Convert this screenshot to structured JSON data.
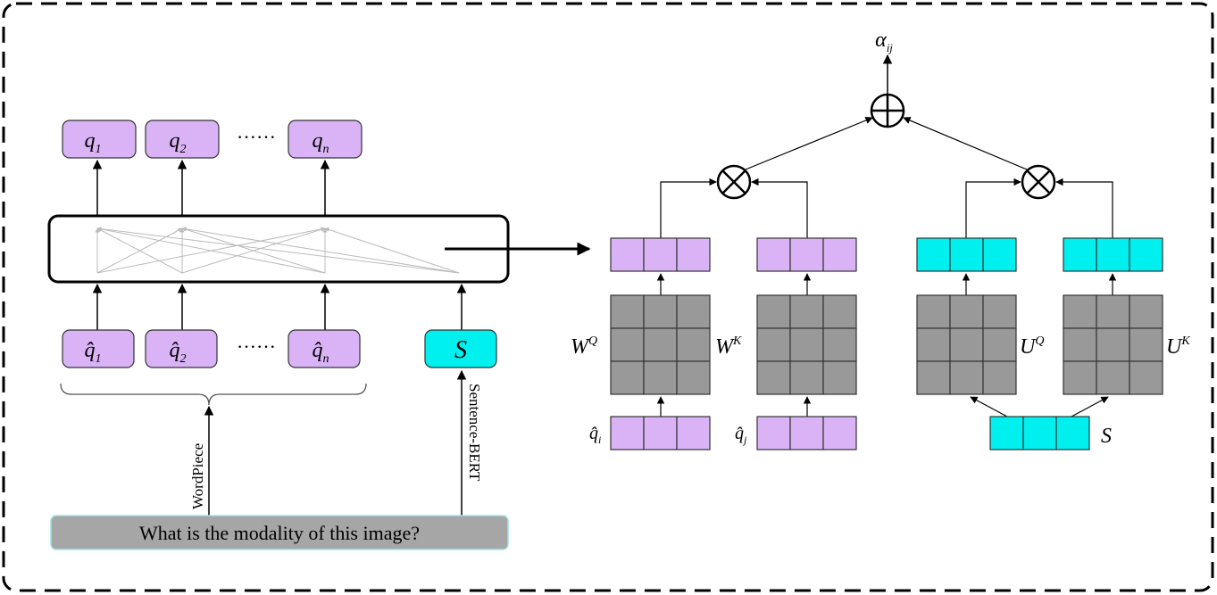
{
  "tokens": {
    "q_outputs": [
      {
        "base": "q",
        "sub": "1"
      },
      {
        "base": "q",
        "sub": "2"
      },
      {
        "base": "q",
        "sub": "n"
      }
    ],
    "q_inputs": [
      {
        "base": "q̂",
        "sub": "1"
      },
      {
        "base": "q̂",
        "sub": "2"
      },
      {
        "base": "q̂",
        "sub": "n"
      }
    ],
    "ellipsis": "······",
    "s_label": "S"
  },
  "labels": {
    "wordpiece": "WordPiece",
    "sentence_bert": "Sentence-BERT",
    "question": "What is the modality of this image?"
  },
  "attention": {
    "alpha": {
      "base": "α",
      "sub": "ij"
    },
    "plus_symbol": "⊕",
    "times_symbol": "⊗",
    "wq": {
      "base": "W",
      "sup": "Q"
    },
    "wk": {
      "base": "W",
      "sup": "K"
    },
    "uq": {
      "base": "U",
      "sup": "Q"
    },
    "uk": {
      "base": "U",
      "sup": "K"
    },
    "qi": {
      "base": "q̂",
      "sub": "i"
    },
    "qj": {
      "base": "q̂",
      "sub": "j"
    },
    "s": "S"
  },
  "colors": {
    "purple": "#d9b3f5",
    "cyan": "#00f0f0",
    "gray": "#999999",
    "question_bg": "#a6a6a6"
  }
}
